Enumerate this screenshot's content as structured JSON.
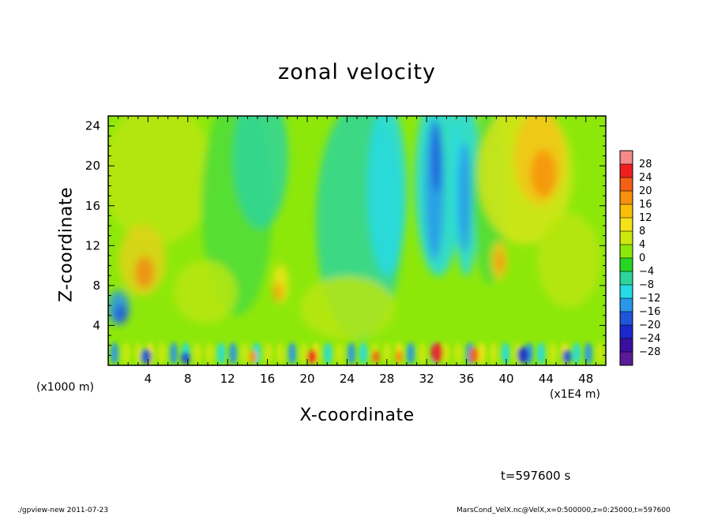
{
  "chart_data": {
    "type": "heatmap",
    "title": "zonal velocity",
    "xlabel": "X-coordinate",
    "ylabel": "Z-coordinate",
    "x_scale_note": "(x1000 m)",
    "x_scale_note_right": "(x1E4 m)",
    "x_ticks": [
      "4",
      "8",
      "12",
      "16",
      "20",
      "24",
      "28",
      "32",
      "36",
      "40",
      "44",
      "48"
    ],
    "y_ticks": [
      "4",
      "8",
      "12",
      "16",
      "20",
      "24"
    ],
    "xlim": [
      0,
      50
    ],
    "ylim": [
      0,
      25
    ],
    "colorbar": {
      "levels": [
        "28",
        "24",
        "20",
        "16",
        "12",
        "8",
        "4",
        "0",
        "−4",
        "−8",
        "−12",
        "−16",
        "−20",
        "−24",
        "−28"
      ],
      "colors": [
        "#f48a8a",
        "#f01f1f",
        "#f56014",
        "#f8920e",
        "#fbbf08",
        "#f4e31a",
        "#cde80f",
        "#8de80a",
        "#27d622",
        "#2ed59a",
        "#26dbe8",
        "#2a96ea",
        "#1f55d8",
        "#1a28cc",
        "#3a0fa0",
        "#5a1a9a"
      ]
    },
    "annotation_time": "t=597600 s",
    "footer_left": "./gpview-new  2011-07-23",
    "footer_right": "MarsCond_VelX.nc@VelX,x=0:500000,z=0:25000,t=597600"
  }
}
